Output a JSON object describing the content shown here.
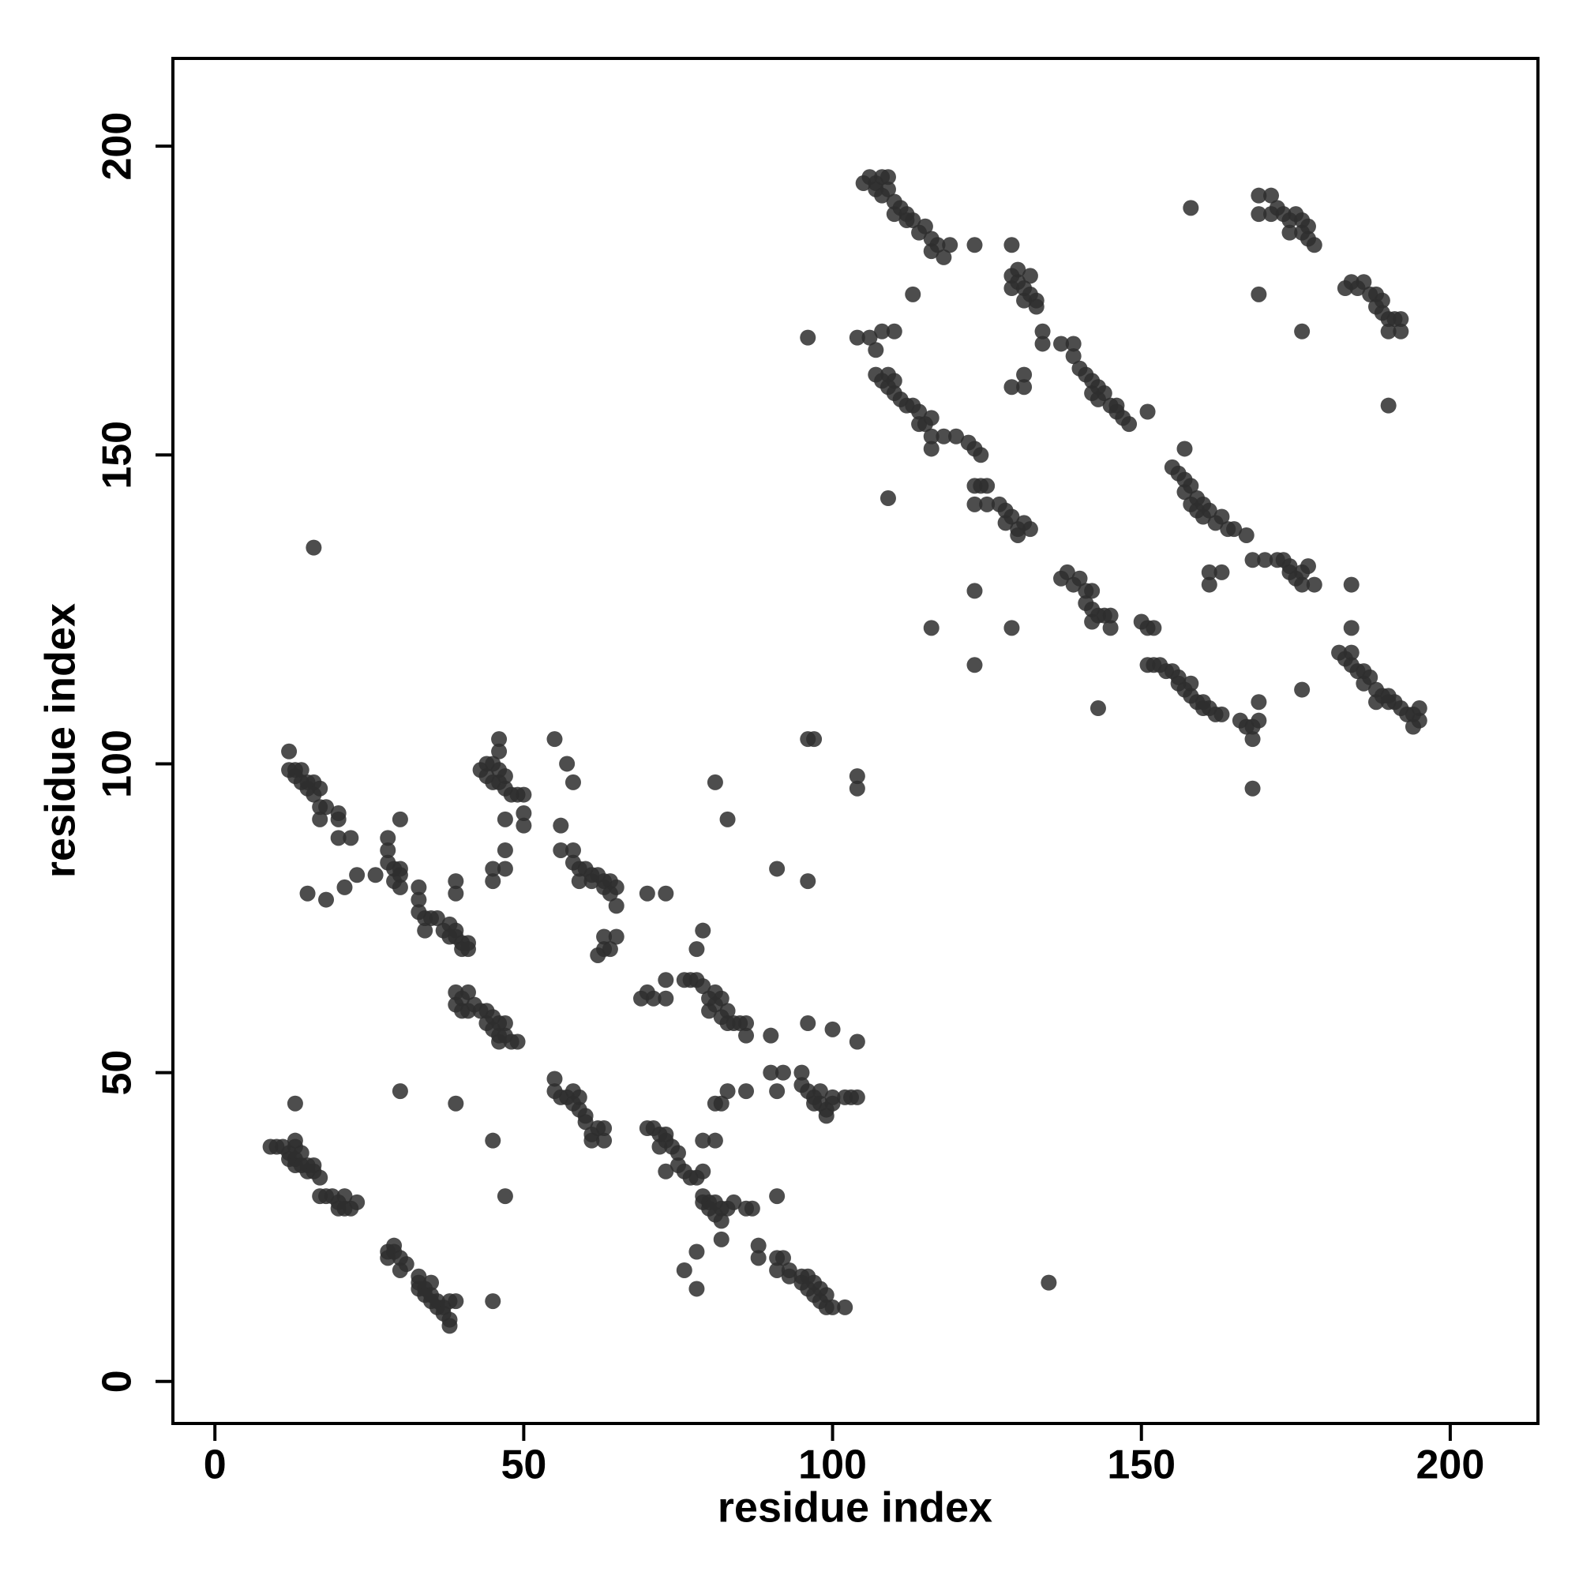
{
  "chart_data": {
    "type": "scatter",
    "xlabel": "residue index",
    "ylabel": "residue index",
    "color": "#2e2e2e",
    "xlim": [
      -6.8,
      214.2
    ],
    "ylim": [
      -6.8,
      214.2
    ],
    "xticks": [
      0,
      50,
      100,
      150,
      200
    ],
    "yticks": [
      0,
      50,
      100,
      150,
      200
    ],
    "x": [
      9,
      10,
      11,
      12,
      12,
      13,
      13,
      13,
      14,
      14,
      15,
      15,
      16,
      16,
      17,
      17,
      18,
      19,
      20,
      20,
      21,
      21,
      22,
      23,
      13,
      13,
      28,
      28,
      29,
      29,
      30,
      30,
      31,
      33,
      33,
      33,
      34,
      34,
      35,
      35,
      35,
      36,
      36,
      37,
      37,
      38,
      38,
      38,
      39,
      45,
      12,
      12,
      13,
      13,
      14,
      14,
      15,
      15,
      16,
      16,
      17,
      17,
      17,
      18,
      20,
      20,
      22,
      20,
      16,
      15,
      18,
      21,
      23,
      26,
      28,
      28,
      28,
      29,
      29,
      30,
      30,
      30,
      30,
      33,
      33,
      33,
      34,
      34,
      35,
      36,
      37,
      38,
      38,
      39,
      39,
      40,
      40,
      41,
      41,
      39,
      39,
      30,
      39,
      39,
      39,
      40,
      40,
      41,
      41,
      42,
      43,
      44,
      44,
      45,
      45,
      46,
      46,
      46,
      47,
      47,
      48,
      49,
      45,
      47,
      43,
      44,
      44,
      45,
      45,
      46,
      46,
      46,
      46,
      47,
      47,
      47,
      48,
      49,
      50,
      50,
      50,
      45,
      45,
      47,
      47,
      55,
      57,
      58,
      56,
      56,
      58,
      58,
      59,
      59,
      60,
      61,
      61,
      62,
      63,
      63,
      64,
      64,
      65,
      65,
      62,
      63,
      63,
      64,
      65,
      70,
      73,
      55,
      55,
      56,
      57,
      58,
      58,
      59,
      59,
      60,
      60,
      61,
      61,
      62,
      63,
      63,
      69,
      70,
      71,
      73,
      73,
      76,
      77,
      78,
      78,
      79,
      79,
      80,
      80,
      81,
      81,
      82,
      82,
      83,
      83,
      84,
      85,
      86,
      86,
      81,
      83,
      70,
      71,
      72,
      72,
      73,
      73,
      74,
      75,
      75,
      73,
      76,
      77,
      78,
      79,
      79,
      79,
      80,
      80,
      81,
      81,
      82,
      83,
      84,
      86,
      87,
      79,
      81,
      81,
      82,
      83,
      86,
      82,
      82,
      78,
      76,
      78,
      91,
      88,
      88,
      91,
      91,
      92,
      93,
      93,
      95,
      95,
      96,
      96,
      97,
      97,
      98,
      98,
      99,
      99,
      100,
      102,
      90,
      90,
      91,
      92,
      95,
      95,
      96,
      97,
      97,
      98,
      98,
      99,
      99,
      100,
      100,
      102,
      103,
      104,
      96,
      100,
      104,
      91,
      96,
      96,
      97,
      104,
      104,
      105,
      106,
      107,
      107,
      108,
      108,
      109,
      109,
      110,
      110,
      111,
      112,
      112,
      113,
      114,
      115,
      116,
      116,
      117,
      118,
      119,
      123,
      113,
      96,
      104,
      106,
      107,
      108,
      110,
      107,
      108,
      109,
      109,
      110,
      110,
      111,
      112,
      113,
      114,
      114,
      115,
      116,
      116,
      116,
      118,
      120,
      109,
      116,
      122,
      123,
      124,
      123,
      123,
      124,
      125,
      125,
      127,
      128,
      128,
      129,
      130,
      130,
      131,
      132,
      123,
      123,
      129,
      129,
      129,
      130,
      130,
      131,
      131,
      132,
      132,
      133,
      133,
      129,
      134,
      134,
      129,
      131,
      131,
      137,
      139,
      139,
      140,
      141,
      142,
      142,
      143,
      143,
      144,
      145,
      146,
      146,
      147,
      148,
      151,
      137,
      138,
      139,
      140,
      141,
      141,
      142,
      142,
      142,
      143,
      144,
      145,
      145,
      143,
      150,
      151,
      152,
      151,
      152,
      153,
      154,
      155,
      156,
      156,
      157,
      158,
      158,
      159,
      160,
      160,
      161,
      162,
      163,
      166,
      167,
      168,
      168,
      169,
      169,
      168,
      155,
      156,
      157,
      157,
      158,
      158,
      159,
      159,
      160,
      160,
      161,
      162,
      163,
      164,
      165,
      167,
      168,
      170,
      157,
      161,
      161,
      163,
      169,
      169,
      171,
      171,
      172,
      173,
      174,
      174,
      175,
      176,
      176,
      177,
      177,
      178,
      158,
      169,
      176,
      172,
      173,
      174,
      174,
      175,
      176,
      176,
      177,
      178,
      184,
      176,
      182,
      183,
      184,
      184,
      185,
      186,
      186,
      187,
      188,
      188,
      189,
      190,
      190,
      191,
      192,
      193,
      194,
      194,
      195,
      195,
      184,
      135,
      183,
      184,
      185,
      186,
      187,
      188,
      188,
      189,
      189,
      190,
      190,
      191,
      192,
      192,
      190
    ],
    "values": [
      38,
      38,
      38,
      37,
      36,
      38,
      36,
      35,
      37,
      35,
      35,
      34,
      35,
      34,
      33,
      30,
      30,
      30,
      29,
      28,
      30,
      28,
      28,
      29,
      39,
      45,
      21,
      20,
      22,
      21,
      20,
      18,
      19,
      17,
      16,
      15,
      15,
      14,
      16,
      14,
      13,
      13,
      12,
      12,
      11,
      13,
      10,
      9,
      13,
      13,
      102,
      99,
      99,
      98,
      99,
      97,
      97,
      96,
      97,
      95,
      96,
      93,
      91,
      93,
      92,
      88,
      88,
      91,
      135,
      79,
      78,
      80,
      82,
      82,
      88,
      86,
      84,
      83,
      81,
      83,
      82,
      80,
      91,
      80,
      78,
      76,
      75,
      73,
      75,
      75,
      73,
      74,
      72,
      73,
      72,
      71,
      70,
      71,
      70,
      81,
      79,
      47,
      45,
      63,
      61,
      62,
      60,
      63,
      60,
      61,
      60,
      60,
      58,
      59,
      57,
      58,
      56,
      55,
      58,
      56,
      55,
      55,
      39,
      30,
      99,
      100,
      98,
      100,
      97,
      99,
      97,
      104,
      102,
      98,
      96,
      91,
      95,
      95,
      95,
      92,
      90,
      83,
      81,
      86,
      83,
      104,
      100,
      97,
      90,
      86,
      86,
      84,
      83,
      81,
      83,
      82,
      81,
      82,
      81,
      80,
      81,
      79,
      80,
      77,
      69,
      72,
      70,
      70,
      72,
      79,
      79,
      49,
      47,
      46,
      46,
      47,
      45,
      46,
      44,
      43,
      42,
      40,
      39,
      41,
      41,
      39,
      62,
      63,
      62,
      65,
      62,
      65,
      65,
      65,
      70,
      73,
      64,
      62,
      60,
      63,
      61,
      59,
      62,
      60,
      58,
      58,
      58,
      58,
      56,
      97,
      91,
      41,
      41,
      40,
      38,
      40,
      39,
      38,
      37,
      35,
      34,
      34,
      33,
      33,
      34,
      30,
      29,
      29,
      28,
      27,
      29,
      28,
      28,
      29,
      28,
      28,
      39,
      39,
      45,
      45,
      47,
      47,
      26,
      23,
      21,
      18,
      15,
      30,
      22,
      20,
      20,
      18,
      20,
      18,
      17,
      17,
      16,
      17,
      15,
      16,
      14,
      15,
      13,
      14,
      12,
      12,
      12,
      56,
      50,
      47,
      50,
      50,
      48,
      47,
      46,
      45,
      47,
      45,
      43,
      44,
      45,
      46,
      46,
      46,
      46,
      58,
      57,
      55,
      83,
      81,
      104,
      104,
      98,
      96,
      194,
      195,
      194,
      193,
      195,
      192,
      195,
      193,
      191,
      189,
      190,
      189,
      188,
      188,
      186,
      187,
      185,
      183,
      184,
      182,
      184,
      184,
      176,
      169,
      169,
      169,
      167,
      170,
      170,
      163,
      162,
      161,
      163,
      160,
      162,
      159,
      158,
      158,
      157,
      155,
      155,
      156,
      153,
      151,
      153,
      153,
      143,
      122,
      152,
      151,
      150,
      145,
      142,
      145,
      145,
      142,
      142,
      141,
      139,
      140,
      138,
      137,
      139,
      138,
      128,
      116,
      122,
      179,
      177,
      180,
      178,
      177,
      175,
      179,
      176,
      175,
      174,
      184,
      170,
      168,
      161,
      161,
      163,
      168,
      168,
      166,
      164,
      163,
      162,
      160,
      161,
      159,
      160,
      158,
      158,
      157,
      156,
      155,
      157,
      130,
      131,
      129,
      130,
      128,
      126,
      128,
      125,
      123,
      124,
      124,
      124,
      122,
      109,
      123,
      122,
      122,
      116,
      116,
      116,
      115,
      115,
      114,
      113,
      112,
      113,
      111,
      110,
      110,
      109,
      109,
      108,
      108,
      107,
      106,
      106,
      104,
      107,
      110,
      96,
      148,
      147,
      146,
      144,
      145,
      142,
      143,
      141,
      142,
      140,
      141,
      139,
      140,
      138,
      138,
      137,
      133,
      133,
      151,
      131,
      129,
      131,
      192,
      189,
      192,
      189,
      190,
      189,
      188,
      186,
      189,
      188,
      186,
      187,
      185,
      184,
      190,
      176,
      170,
      133,
      133,
      132,
      131,
      130,
      129,
      131,
      132,
      129,
      129,
      112,
      118,
      117,
      118,
      116,
      115,
      115,
      113,
      114,
      112,
      110,
      111,
      111,
      110,
      110,
      109,
      108,
      108,
      106,
      109,
      107,
      122,
      16,
      177,
      178,
      177,
      178,
      176,
      176,
      174,
      175,
      173,
      170,
      172,
      172,
      172,
      170,
      158
    ]
  }
}
